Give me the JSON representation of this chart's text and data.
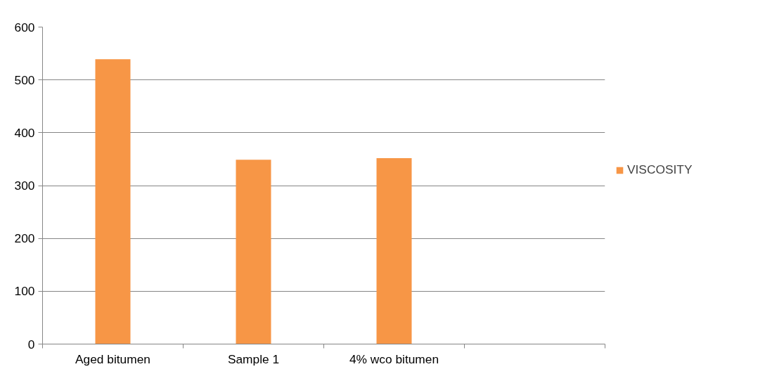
{
  "chart_data": {
    "type": "bar",
    "categories": [
      "Aged bitumen",
      "Sample 1",
      "4% wco bitumen",
      null
    ],
    "series": [
      {
        "name": "VISCOSITY",
        "color": "#f79646",
        "values": [
          539,
          349,
          352,
          null
        ]
      }
    ],
    "ylim": [
      0,
      600
    ],
    "yticks": [
      0,
      100,
      200,
      300,
      400,
      500,
      600
    ],
    "grid": "y",
    "legend": "right"
  }
}
